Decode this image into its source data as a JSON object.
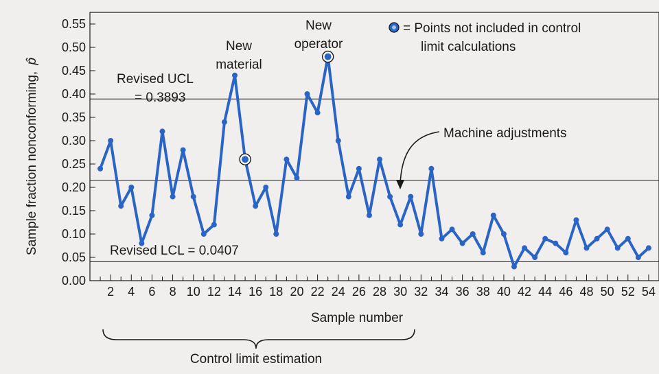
{
  "chart_data": {
    "type": "line",
    "xlabel": "Sample number",
    "ylabel": "Sample fraction nonconforming, p̂",
    "xlim": [
      0,
      55
    ],
    "ylim": [
      0,
      0.575
    ],
    "x_tick_labels": [
      "2",
      "4",
      "6",
      "8",
      "10",
      "12",
      "14",
      "16",
      "18",
      "20",
      "22",
      "24",
      "26",
      "28",
      "30",
      "32",
      "34",
      "36",
      "38",
      "40",
      "42",
      "44",
      "46",
      "48",
      "50",
      "52",
      "54"
    ],
    "y_tick_labels": [
      "0.00",
      "0.05",
      "0.10",
      "0.15",
      "0.20",
      "0.25",
      "0.30",
      "0.35",
      "0.40",
      "0.45",
      "0.50",
      "0.55"
    ],
    "grid": "horizontal",
    "reference_lines": [
      {
        "name": "Revised UCL",
        "value": 0.3893
      },
      {
        "name": "Center line",
        "value": 0.215
      },
      {
        "name": "Revised LCL",
        "value": 0.0407
      }
    ],
    "series": [
      {
        "x": [
          1,
          2,
          3,
          4,
          5,
          6,
          7,
          8,
          9,
          10,
          11,
          12,
          13,
          14,
          15,
          16,
          17,
          18,
          19,
          20,
          21,
          22,
          23,
          24,
          25,
          26,
          27,
          28,
          29,
          30,
          31,
          32,
          33,
          34,
          35,
          36,
          37,
          38,
          39,
          40,
          41,
          42,
          43,
          44,
          45,
          46,
          47,
          48,
          49,
          50,
          51,
          52,
          53,
          54
        ],
        "values": [
          0.24,
          0.3,
          0.16,
          0.2,
          0.08,
          0.14,
          0.32,
          0.18,
          0.28,
          0.18,
          0.1,
          0.12,
          0.34,
          0.44,
          0.26,
          0.16,
          0.2,
          0.1,
          0.26,
          0.22,
          0.4,
          0.36,
          0.48,
          0.3,
          0.18,
          0.24,
          0.14,
          0.26,
          0.18,
          0.12,
          0.18,
          0.1,
          0.24,
          0.09,
          0.11,
          0.08,
          0.1,
          0.06,
          0.14,
          0.1,
          0.03,
          0.07,
          0.05,
          0.09,
          0.08,
          0.06,
          0.13,
          0.07,
          0.09,
          0.11,
          0.07,
          0.09,
          0.05,
          0.07
        ],
        "color": "#2a64c4"
      }
    ],
    "excluded_points": [
      15,
      23
    ]
  },
  "annotations": {
    "ucl_line1": "Revised UCL",
    "ucl_line2": "= 0.3893",
    "lcl": "Revised LCL = 0.0407",
    "new_material_1": "New",
    "new_material_2": "material",
    "new_operator_1": "New",
    "new_operator_2": "operator",
    "machine_adjustments": "Machine adjustments",
    "legend_line1": "= Points not included in control",
    "legend_line2": "limit calculations",
    "brace_label": "Control limit estimation",
    "ylabel_main": "Sample fraction nonconforming,",
    "ylabel_symbol": "p̂"
  },
  "colors": {
    "series": "#2a64c4",
    "background": "#f1efee",
    "axis": "#1a1a1a"
  }
}
